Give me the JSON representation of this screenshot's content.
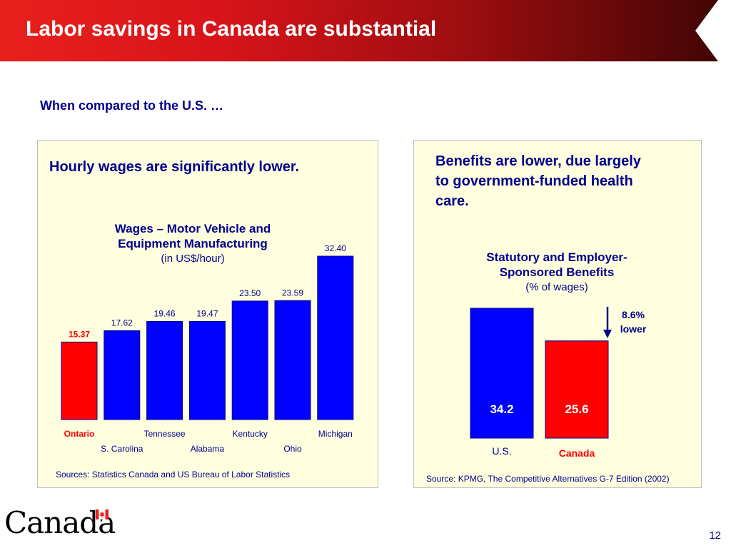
{
  "slide": {
    "title": "Labor savings in Canada are substantial",
    "subtitle": "When compared to the U.S. …",
    "page_number": "12",
    "logo_wordmark": "Canada",
    "colors": {
      "banner": "#e8201c",
      "text": "#00008c",
      "canada": "#ff0000",
      "us": "#0000ff",
      "panel": "#ffffe0"
    }
  },
  "left_panel": {
    "headline": "Hourly wages are significantly lower.",
    "title_line1": "Wages – Motor Vehicle and",
    "title_line2": "Equipment Manufacturing",
    "unit": "(in US$/hour)",
    "source": "Sources: Statistics Canada and US Bureau of Labor Statistics"
  },
  "right_panel": {
    "headline_line1": "Benefits are lower, due largely",
    "headline_line2": "to government-funded health",
    "headline_line3": "care.",
    "title_line1": "Statutory and Employer-",
    "title_line2": "Sponsored Benefits",
    "unit": "(% of wages)",
    "annotation_line1": "8.6%",
    "annotation_line2": "lower",
    "source": "Source: KPMG, The Competitive Alternatives G-7 Edition (2002)"
  },
  "chart_data": [
    {
      "type": "bar",
      "title": "Wages – Motor Vehicle and Equipment Manufacturing",
      "subtitle": "(in US$/hour)",
      "categories": [
        "Ontario",
        "S. Carolina",
        "Tennessee",
        "Alabama",
        "Kentucky",
        "Ohio",
        "Michigan"
      ],
      "values": [
        15.37,
        17.62,
        19.46,
        19.47,
        23.5,
        23.59,
        32.4
      ],
      "value_labels": [
        "15.37",
        "17.62",
        "19.46",
        "19.47",
        "23.50",
        "23.59",
        "32.40"
      ],
      "colors": [
        "#ff0000",
        "#0000ff",
        "#0000ff",
        "#0000ff",
        "#0000ff",
        "#0000ff",
        "#0000ff"
      ],
      "ylim": [
        0,
        32.4
      ],
      "grid": false,
      "legend": "none"
    },
    {
      "type": "bar",
      "title": "Statutory and Employer-Sponsored Benefits",
      "subtitle": "(% of wages)",
      "categories": [
        "U.S.",
        "Canada"
      ],
      "values": [
        34.2,
        25.6
      ],
      "value_labels": [
        "34.2",
        "25.6"
      ],
      "colors": [
        "#0000ff",
        "#ff0000"
      ],
      "ylim": [
        0,
        34.2
      ],
      "grid": false,
      "legend": "none",
      "annotation": "8.6% lower"
    }
  ]
}
